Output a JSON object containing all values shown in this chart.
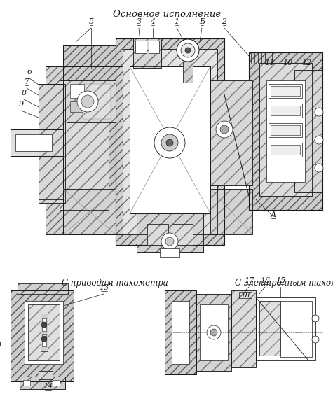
{
  "title": "Основное исполнение",
  "subtitle1": "С приводам тахометра",
  "subtitle2": "С электронным тахометром.",
  "bg_color": "#ffffff",
  "dc": "#1a1a1a",
  "hatch_light": "#cccccc",
  "title_fontsize": 9.5,
  "subtitle_fontsize": 8.5,
  "label_fontsize": 8,
  "fig_width": 4.75,
  "fig_height": 5.63,
  "dpi": 100
}
